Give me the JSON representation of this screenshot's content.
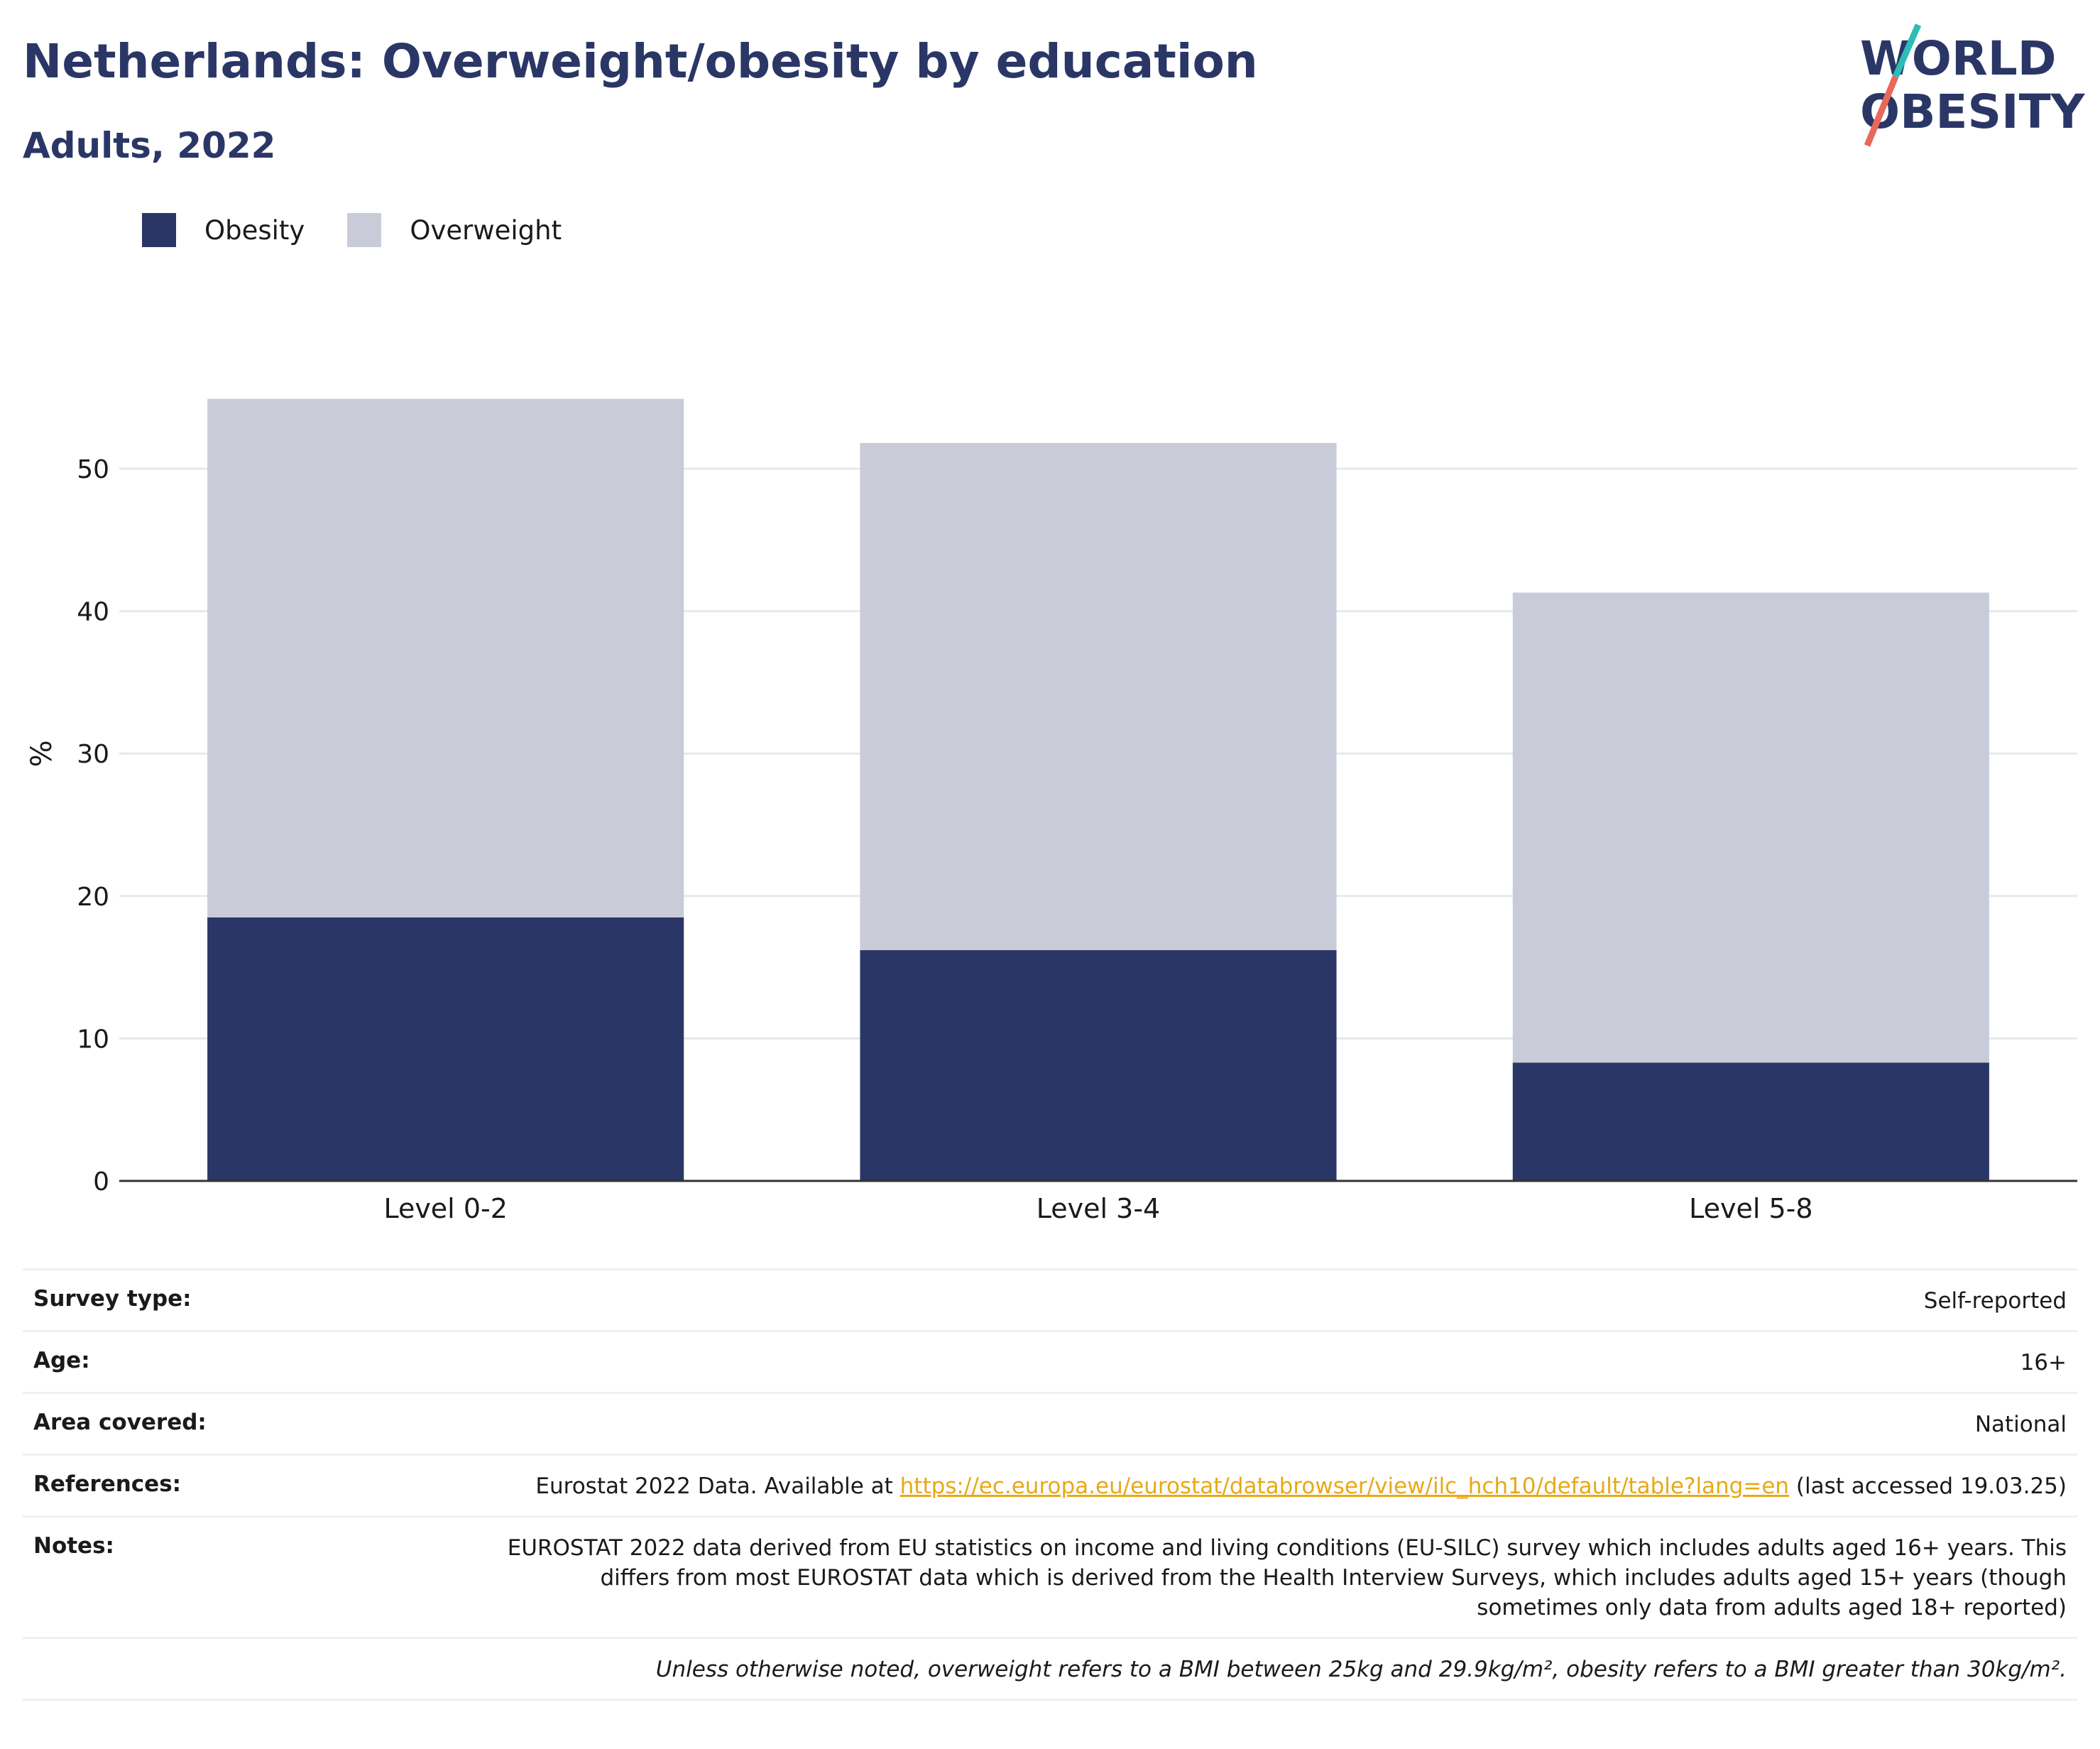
{
  "title": "Netherlands: Overweight/obesity by education",
  "subtitle": "Adults, 2022",
  "logo": {
    "line1": "WORLD",
    "line2": "OBESITY"
  },
  "legend": [
    {
      "name": "Obesity",
      "color": "#2a3766"
    },
    {
      "name": "Overweight",
      "color": "#c9ccd8"
    }
  ],
  "chart_data": {
    "type": "bar",
    "stacked": true,
    "categories": [
      "Level 0-2",
      "Level 3-4",
      "Level 5-8"
    ],
    "series": [
      {
        "name": "Obesity",
        "values": [
          18.5,
          16.2,
          8.3
        ],
        "color": "#2a3766"
      },
      {
        "name": "Overweight",
        "values": [
          36.4,
          35.6,
          33.0
        ],
        "color": "#c9ccd8"
      }
    ],
    "ylabel": "%",
    "ylim": [
      0,
      60
    ],
    "yticks": [
      0,
      10,
      20,
      30,
      40,
      50
    ],
    "grid": true,
    "legend_position": "top-left"
  },
  "meta": {
    "survey_type_label": "Survey type:",
    "survey_type_value": "Self-reported",
    "age_label": "Age:",
    "age_value": "16+",
    "area_label": "Area covered:",
    "area_value": "National",
    "references_label": "References:",
    "references_prefix": "Eurostat 2022 Data. Available at ",
    "references_link": "https://ec.europa.eu/eurostat/databrowser/view/ilc_hch10/default/table?lang=en",
    "references_suffix": " (last accessed 19.03.25)",
    "notes_label": "Notes:",
    "notes_value": "EUROSTAT 2022 data derived from EU statistics on income and living conditions (EU-SILC) survey which includes adults aged 16+ years. This differs from most EUROSTAT data which is derived from the Health Interview Surveys, which includes adults aged 15+ years (though sometimes only data from adults aged 18+ reported)",
    "footnote": "Unless otherwise noted, overweight refers to a BMI between 25kg and 29.9kg/m², obesity refers to a BMI greater than 30kg/m²."
  }
}
